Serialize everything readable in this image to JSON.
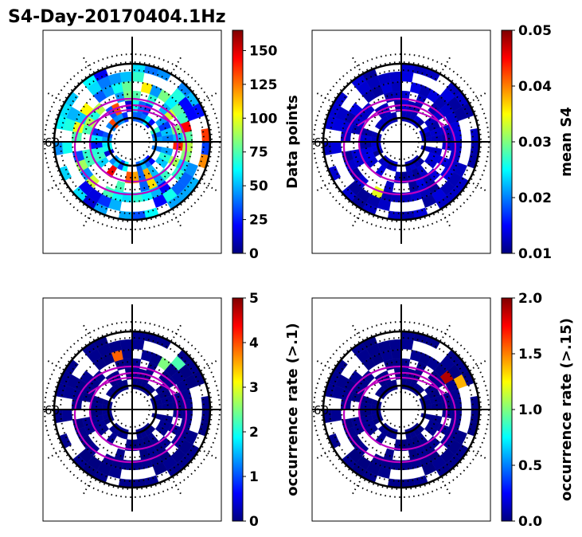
{
  "title": "S4-Day-20170404.1Hz",
  "colormap": [
    "#00007f",
    "#0000ff",
    "#007fff",
    "#00ffff",
    "#7fff7f",
    "#ffff00",
    "#ff7f00",
    "#ff0000",
    "#7f0000"
  ],
  "colors": {
    "contour": "#c000c0",
    "frame": "#000000"
  },
  "chart_data": [
    {
      "type": "heatmap",
      "projection": "polar",
      "panel": "top-left",
      "side_label": "60",
      "colorbar": {
        "label": "Data points",
        "range": [
          0,
          165
        ],
        "ticks": [
          "0",
          "25",
          "50",
          "75",
          "100",
          "125",
          "150"
        ],
        "tick_values": [
          0,
          25,
          50,
          75,
          100,
          125,
          150
        ]
      },
      "field": "counts"
    },
    {
      "type": "heatmap",
      "projection": "polar",
      "panel": "top-right",
      "side_label": "60",
      "colorbar": {
        "label": "mean S4",
        "range": [
          0.01,
          0.05
        ],
        "ticks": [
          "0.01",
          "0.02",
          "0.03",
          "0.04",
          "0.05"
        ],
        "tick_values": [
          0.01,
          0.02,
          0.03,
          0.04,
          0.05
        ]
      },
      "field": "mean_s4"
    },
    {
      "type": "heatmap",
      "projection": "polar",
      "panel": "bottom-left",
      "side_label": "60",
      "colorbar": {
        "label": "occurrence rate (>.1)",
        "range": [
          0,
          5
        ],
        "ticks": [
          "0",
          "1",
          "2",
          "3",
          "4",
          "5"
        ],
        "tick_values": [
          0,
          1,
          2,
          3,
          4,
          5
        ]
      },
      "field": "occ_01"
    },
    {
      "type": "heatmap",
      "projection": "polar",
      "panel": "bottom-right",
      "side_label": "60",
      "colorbar": {
        "label": "occurrence rate (>.15)",
        "range": [
          0,
          2
        ],
        "ticks": [
          "0.0",
          "0.5",
          "1.0",
          "1.5",
          "2.0"
        ],
        "tick_values": [
          0,
          0.5,
          1.0,
          1.5,
          2.0
        ]
      },
      "field": "occ_015"
    }
  ]
}
